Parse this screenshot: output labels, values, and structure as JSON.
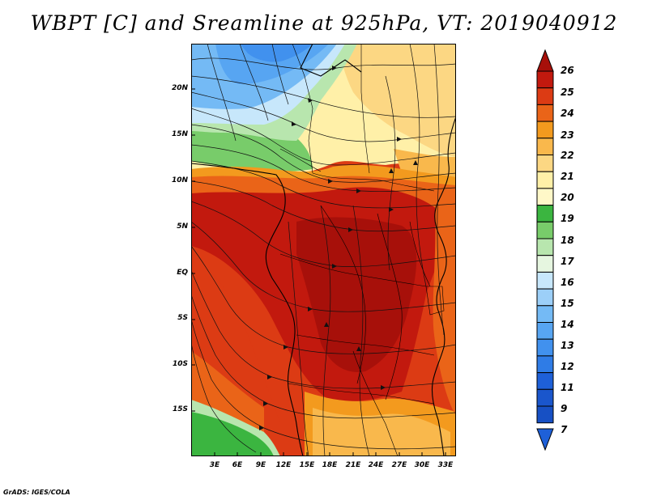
{
  "title": "WBPT [C] and Sreamline at 925hPa, VT: 2019040912",
  "footer": "GrADS: IGES/COLA",
  "map": {
    "lat_labels": [
      "20N",
      "15N",
      "10N",
      "5N",
      "EQ",
      "5S",
      "10S",
      "15S"
    ],
    "lon_labels": [
      "3E",
      "6E",
      "9E",
      "12E",
      "15E",
      "18E",
      "21E",
      "24E",
      "27E",
      "30E",
      "33E"
    ],
    "colors": {
      "lt7": "#1e60d8",
      "c7_9": "#2f7ce6",
      "c9_11": "#4191ee",
      "c11_12": "#57a5f2",
      "c12_13": "#74baf5",
      "c13_14": "#9ccff8",
      "c14_15": "#c7e7fb",
      "c15_16": "#e6f6e0",
      "c16_17": "#b8e6ae",
      "c17_18": "#78cc6a",
      "c18_19": "#3bb540",
      "c19_20": "#fff0a8",
      "c20_21": "#fcd783",
      "c21_22": "#f9b84c",
      "c22_23": "#f39a1e",
      "c23_24": "#ea6418",
      "c24_25": "#dc3b14",
      "c25_26": "#c2190e",
      "gt26": "#a7100a"
    }
  },
  "colorbar": {
    "labels": [
      "26",
      "25",
      "24",
      "23",
      "22",
      "21",
      "20",
      "19",
      "18",
      "17",
      "16",
      "15",
      "14",
      "13",
      "12",
      "11",
      "9",
      "7"
    ],
    "colors_top_to_bottom": [
      "#a7100a",
      "#c2190e",
      "#dc3b14",
      "#ea6418",
      "#f39a1e",
      "#f9b84c",
      "#fcd783",
      "#fff0a8",
      "#3bb540",
      "#78cc6a",
      "#b8e6ae",
      "#e6f6e0",
      "#c7e7fb",
      "#9ccff8",
      "#74baf5",
      "#57a5f2",
      "#4191ee",
      "#2f7ce6",
      "#1e60d8"
    ]
  }
}
